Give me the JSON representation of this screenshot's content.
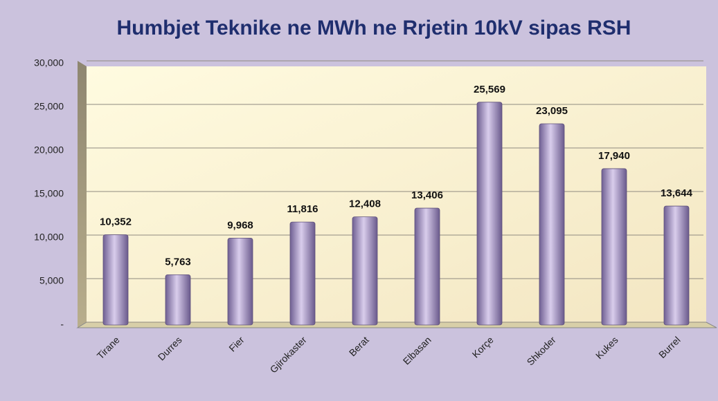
{
  "chart_data": {
    "type": "bar",
    "title": "Humbjet Teknike ne MWh ne Rrjetin 10kV sipas RSH",
    "categories": [
      "Tirane",
      "Durres",
      "Fier",
      "Gjirokaster",
      "Berat",
      "Elbasan",
      "Korçe",
      "Shkoder",
      "Kukes",
      "Burrel"
    ],
    "values": [
      10352,
      5763,
      9968,
      11816,
      12408,
      13406,
      25569,
      23095,
      17940,
      13644
    ],
    "value_labels": [
      "10,352",
      "5,763",
      "9,968",
      "11,816",
      "12,408",
      "13,406",
      "25,569",
      "23,095",
      "17,940",
      "13,644"
    ],
    "color": "#9a8ab8",
    "ylim": [
      0,
      30000
    ],
    "yticks": [
      {
        "value": 0,
        "label": "-"
      },
      {
        "value": 5000,
        "label": "5,000"
      },
      {
        "value": 10000,
        "label": "10,000"
      },
      {
        "value": 15000,
        "label": "15,000"
      },
      {
        "value": 20000,
        "label": "20,000"
      },
      {
        "value": 25000,
        "label": "25,000"
      },
      {
        "value": 30000,
        "label": "30,000"
      }
    ],
    "grid": true
  }
}
